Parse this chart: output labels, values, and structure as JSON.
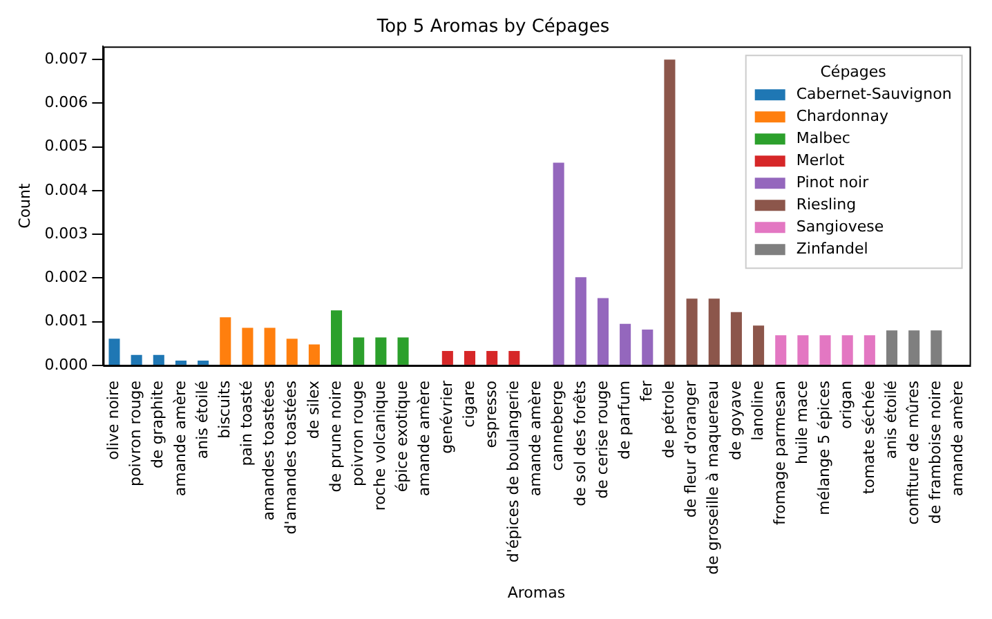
{
  "chart_data": {
    "type": "bar",
    "title": "Top 5 Aromas by Cépages",
    "xlabel": "Aromas",
    "ylabel": "Count",
    "legend_title": "Cépages",
    "legend": "top right",
    "grid": false,
    "stacked": true,
    "categories": [
      "olive noire",
      "poivron rouge",
      "de graphite",
      "amande amère",
      "anis étoilé",
      "biscuits",
      "pain toasté",
      "amandes toastées",
      "d'amandes toastées",
      "de silex",
      "de prune noire",
      "poivron rouge",
      "roche volcanique",
      "épice exotique",
      "amande amère",
      "genévrier",
      "cigare",
      "espresso",
      "d'épices de boulangerie",
      "amande amère",
      "canneberge",
      "de sol des forêts",
      "de cerise rouge",
      "de parfum",
      "fer",
      "de pétrole",
      "de fleur d'oranger",
      "de groseille à maquereau",
      "de goyave",
      "lanoline",
      "fromage parmesan",
      "huile mace",
      "mélange 5 épices",
      "origan",
      "tomate séchée",
      "anis étoilé",
      "confiture de mûres",
      "de framboise noire",
      "amande amère"
    ],
    "ylim": [
      0,
      0.0073
    ],
    "yticks": [
      {
        "value": 0,
        "label": "0.000"
      },
      {
        "value": 0.001,
        "label": "0.001"
      },
      {
        "value": 0.002,
        "label": "0.002"
      },
      {
        "value": 0.003,
        "label": "0.003"
      },
      {
        "value": 0.004,
        "label": "0.004"
      },
      {
        "value": 0.005,
        "label": "0.005"
      },
      {
        "value": 0.006,
        "label": "0.006"
      },
      {
        "value": 0.007,
        "label": "0.007"
      }
    ],
    "series": [
      {
        "name": "Cabernet-Sauvignon",
        "color": "#1f77b4",
        "values": [
          0.00061,
          0.00024,
          0.00024,
          0.00011,
          0.00011,
          null,
          null,
          null,
          null,
          null,
          null,
          null,
          null,
          null,
          null,
          null,
          null,
          null,
          null,
          null,
          null,
          null,
          null,
          null,
          null,
          null,
          null,
          null,
          null,
          null,
          null,
          null,
          null,
          null,
          null,
          null,
          null,
          null,
          null
        ]
      },
      {
        "name": "Chardonnay",
        "color": "#ff7f0e",
        "values": [
          null,
          null,
          null,
          null,
          null,
          0.0011,
          0.00086,
          0.00086,
          0.00061,
          0.00048,
          null,
          null,
          null,
          null,
          null,
          null,
          null,
          null,
          null,
          null,
          null,
          null,
          null,
          null,
          null,
          null,
          null,
          null,
          null,
          null,
          null,
          null,
          null,
          null,
          null,
          null,
          null,
          null,
          null
        ]
      },
      {
        "name": "Malbec",
        "color": "#2ca02c",
        "values": [
          null,
          null,
          null,
          null,
          null,
          null,
          null,
          null,
          null,
          null,
          0.00126,
          0.00064,
          0.00064,
          0.00064,
          null,
          null,
          null,
          null,
          null,
          null,
          null,
          null,
          null,
          null,
          null,
          null,
          null,
          null,
          null,
          null,
          null,
          null,
          null,
          null,
          null,
          null,
          null,
          null,
          null
        ]
      },
      {
        "name": "Merlot",
        "color": "#d62728",
        "values": [
          null,
          null,
          null,
          null,
          null,
          null,
          null,
          null,
          null,
          null,
          null,
          null,
          null,
          null,
          null,
          0.00033,
          0.00033,
          0.00033,
          0.00033,
          null,
          null,
          null,
          null,
          null,
          null,
          null,
          null,
          null,
          null,
          null,
          null,
          null,
          null,
          null,
          null,
          null,
          null,
          null,
          null
        ]
      },
      {
        "name": "Pinot noir",
        "color": "#9467bd",
        "values": [
          null,
          null,
          null,
          null,
          null,
          null,
          null,
          null,
          null,
          null,
          null,
          null,
          null,
          null,
          null,
          null,
          null,
          null,
          null,
          null,
          0.00464,
          0.00202,
          0.00154,
          0.00095,
          0.00082,
          null,
          null,
          null,
          null,
          null,
          null,
          null,
          null,
          null,
          null,
          null,
          null,
          null,
          null
        ]
      },
      {
        "name": "Riesling",
        "color": "#8c564b",
        "values": [
          null,
          null,
          null,
          null,
          null,
          null,
          null,
          null,
          null,
          null,
          null,
          null,
          null,
          null,
          null,
          null,
          null,
          null,
          null,
          null,
          null,
          null,
          null,
          null,
          null,
          0.007,
          0.00153,
          0.00153,
          0.00122,
          0.00091,
          null,
          null,
          null,
          null,
          null,
          null,
          null,
          null,
          null
        ]
      },
      {
        "name": "Sangiovese",
        "color": "#e377c2",
        "values": [
          null,
          null,
          null,
          null,
          null,
          null,
          null,
          null,
          null,
          null,
          null,
          null,
          null,
          null,
          null,
          null,
          null,
          null,
          null,
          null,
          null,
          null,
          null,
          null,
          null,
          null,
          null,
          null,
          null,
          null,
          0.00069,
          0.00069,
          0.00069,
          0.00069,
          0.00069,
          null,
          null,
          null,
          null
        ]
      },
      {
        "name": "Zinfandel",
        "color": "#7f7f7f",
        "values": [
          null,
          null,
          null,
          null,
          null,
          null,
          null,
          null,
          null,
          null,
          null,
          null,
          null,
          null,
          null,
          null,
          null,
          null,
          null,
          null,
          null,
          null,
          null,
          null,
          null,
          null,
          null,
          null,
          null,
          null,
          null,
          null,
          null,
          null,
          null,
          0.0008,
          0.0008,
          0.0008,
          null
        ]
      }
    ]
  }
}
